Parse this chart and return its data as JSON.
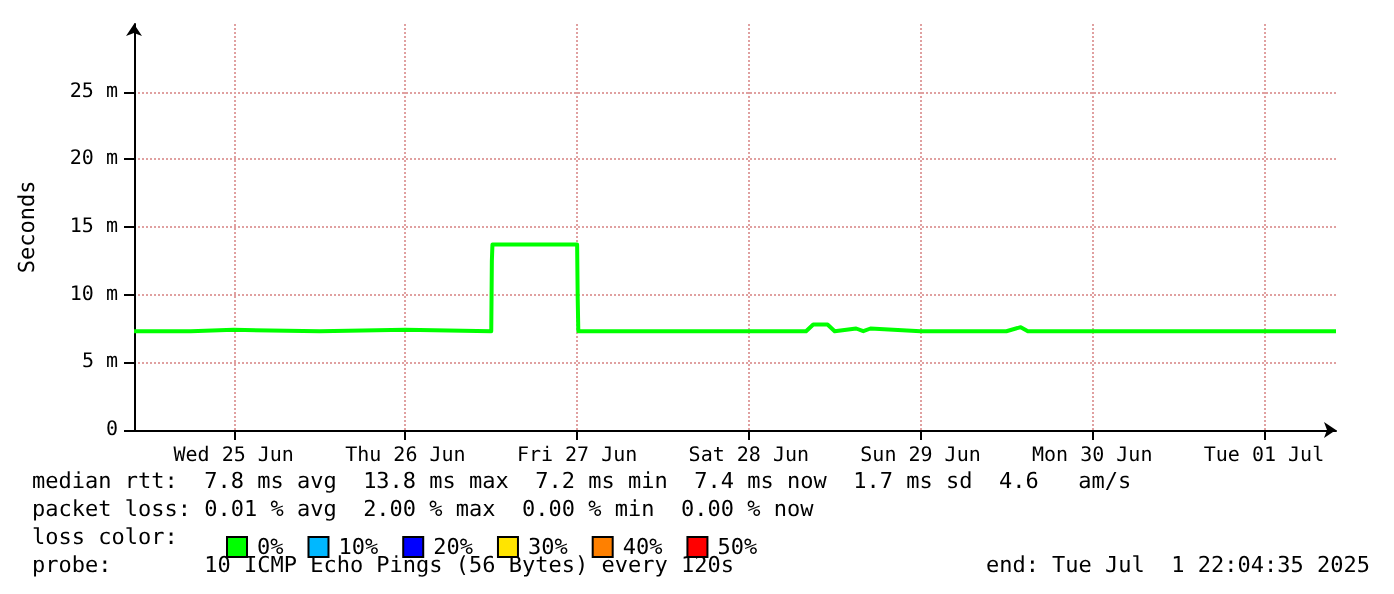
{
  "chart_data": {
    "type": "line",
    "ylabel": "Seconds",
    "x": [
      "2025-06-24T22:04",
      "2025-06-25T06:00",
      "2025-06-25T12:00",
      "2025-06-26T00:00",
      "2025-06-26T12:00",
      "2025-06-27T00:00",
      "2025-06-27T00:05",
      "2025-06-27T00:10",
      "2025-06-27T12:00",
      "2025-06-27T12:05",
      "2025-06-27T12:10",
      "2025-06-28T12:00",
      "2025-06-28T20:00",
      "2025-06-28T21:00",
      "2025-06-28T23:00",
      "2025-06-29T00:00",
      "2025-06-29T03:00",
      "2025-06-29T04:00",
      "2025-06-29T05:00",
      "2025-06-29T12:00",
      "2025-06-30T00:00",
      "2025-06-30T02:00",
      "2025-06-30T03:00",
      "2025-06-30T18:00",
      "2025-07-01T12:00",
      "2025-07-01T22:04"
    ],
    "series": [
      {
        "name": "0%",
        "color": "#00ff00",
        "values": [
          7.3,
          7.3,
          7.4,
          7.3,
          7.4,
          7.3,
          12.5,
          13.7,
          13.7,
          9.7,
          7.3,
          7.3,
          7.3,
          7.8,
          7.8,
          7.3,
          7.5,
          7.3,
          7.5,
          7.3,
          7.3,
          7.6,
          7.3,
          7.3,
          7.3,
          7.3
        ]
      },
      {
        "name": "10%",
        "color": "#00b8ff",
        "values": [
          null,
          null,
          null,
          null,
          null,
          null,
          null,
          null,
          null,
          null,
          null,
          null,
          null,
          null,
          null,
          null,
          null,
          null,
          null,
          null,
          null,
          null,
          null,
          null,
          null,
          null
        ]
      },
      {
        "name": "20%",
        "color": "#0000ff",
        "values": [
          null,
          null,
          null,
          null,
          null,
          null,
          null,
          null,
          null,
          null,
          null,
          null,
          null,
          null,
          null,
          null,
          null,
          null,
          null,
          null,
          null,
          null,
          null,
          null,
          null,
          null
        ]
      },
      {
        "name": "30%",
        "color": "#ffe400",
        "values": [
          null,
          null,
          null,
          null,
          null,
          null,
          null,
          null,
          null,
          null,
          null,
          null,
          null,
          null,
          null,
          null,
          null,
          null,
          null,
          null,
          null,
          null,
          null,
          null,
          null,
          null
        ]
      },
      {
        "name": "40%",
        "color": "#ff8000",
        "values": [
          null,
          null,
          null,
          null,
          null,
          null,
          null,
          null,
          null,
          null,
          null,
          null,
          null,
          null,
          null,
          null,
          null,
          null,
          null,
          null,
          null,
          null,
          null,
          null,
          null,
          null
        ]
      },
      {
        "name": "50%",
        "color": "#ff0000",
        "values": [
          null,
          null,
          null,
          null,
          null,
          null,
          null,
          null,
          null,
          null,
          null,
          null,
          null,
          null,
          null,
          null,
          null,
          null,
          null,
          null,
          null,
          null,
          null,
          null,
          null,
          null
        ]
      }
    ],
    "xlim": [
      "2025-06-24T22:04",
      "2025-07-01T22:04"
    ],
    "xticks": [
      {
        "value": "2025-06-25T12:00",
        "label": "Wed 25 Jun"
      },
      {
        "value": "2025-06-26T12:00",
        "label": "Thu 26 Jun"
      },
      {
        "value": "2025-06-27T12:00",
        "label": "Fri 27 Jun"
      },
      {
        "value": "2025-06-28T12:00",
        "label": "Sat 28 Jun"
      },
      {
        "value": "2025-06-29T12:00",
        "label": "Sun 29 Jun"
      },
      {
        "value": "2025-06-30T12:00",
        "label": "Mon 30 Jun"
      },
      {
        "value": "2025-07-01T12:00",
        "label": "Tue 01 Jul"
      }
    ],
    "ylim": [
      0,
      30
    ],
    "yticks": [
      {
        "value": 0,
        "label": "0"
      },
      {
        "value": 5,
        "label": "5 m"
      },
      {
        "value": 10,
        "label": "10 m"
      },
      {
        "value": 15,
        "label": "15 m"
      },
      {
        "value": 20,
        "label": "20 m"
      },
      {
        "value": 25,
        "label": "25 m"
      }
    ],
    "grid": true,
    "legend": "bottom",
    "line_style": "solid",
    "marker": "none",
    "annotations": [
      "median rtt:  7.8 ms avg  13.8 ms max  7.2 ms min  7.4 ms now  1.7 ms sd  4.6   am/s",
      "packet loss: 0.01 % avg  2.00 % max  0.00 % min  0.00 % now",
      "loss color:",
      "probe:       10 ICMP Echo Pings (56 Bytes) every 120s",
      "end: Tue Jul  1 22:04:35 2025"
    ]
  }
}
